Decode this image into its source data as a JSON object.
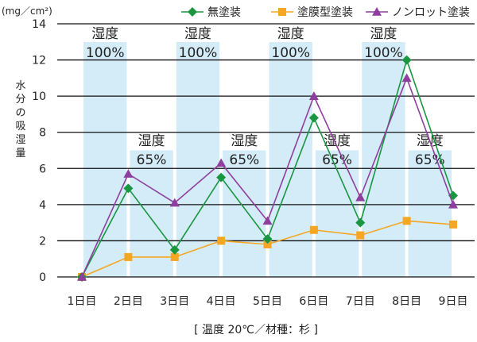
{
  "chart_data": {
    "type": "line",
    "unit_label": "(mg／cm²)",
    "ylabel": "水分の吸湿量",
    "caption": "[ 温度 20℃／材種：杉 ]",
    "ylim": [
      0,
      14
    ],
    "yticks": [
      0,
      2,
      4,
      6,
      8,
      10,
      12,
      14
    ],
    "grid": true,
    "legend_position": "top-right",
    "categories": [
      "1日目",
      "2日目",
      "3日目",
      "4日目",
      "5日目",
      "6日目",
      "7日目",
      "8日目",
      "9日目"
    ],
    "bands": [
      {
        "label": "湿度",
        "value_label": "100%",
        "from": 0,
        "to": 1,
        "humidity": 100
      },
      {
        "label": "湿度",
        "value_label": "65%",
        "from": 1,
        "to": 2,
        "humidity": 65
      },
      {
        "label": "湿度",
        "value_label": "100%",
        "from": 2,
        "to": 3,
        "humidity": 100
      },
      {
        "label": "湿度",
        "value_label": "65%",
        "from": 3,
        "to": 4,
        "humidity": 65
      },
      {
        "label": "湿度",
        "value_label": "100%",
        "from": 4,
        "to": 5,
        "humidity": 100
      },
      {
        "label": "湿度",
        "value_label": "65%",
        "from": 5,
        "to": 6,
        "humidity": 65
      },
      {
        "label": "湿度",
        "value_label": "100%",
        "from": 6,
        "to": 7,
        "humidity": 100
      },
      {
        "label": "湿度",
        "value_label": "65%",
        "from": 7,
        "to": 8,
        "humidity": 65
      }
    ],
    "series": [
      {
        "name": "無塗装",
        "color": "#1a9641",
        "marker": "diamond",
        "values": [
          0,
          4.9,
          1.5,
          5.5,
          2.1,
          8.8,
          3.0,
          12.0,
          4.5
        ]
      },
      {
        "name": "塗膜型塗装",
        "color": "#f5a623",
        "marker": "square",
        "values": [
          0,
          1.1,
          1.1,
          2.0,
          1.8,
          2.6,
          2.3,
          3.1,
          2.9
        ]
      },
      {
        "name": "ノンロット塗装",
        "color": "#8e3f9e",
        "marker": "triangle",
        "values": [
          0,
          5.7,
          4.1,
          6.3,
          3.1,
          10.0,
          4.4,
          11.0,
          4.0
        ]
      }
    ],
    "band_color": "#d4ecf8"
  }
}
